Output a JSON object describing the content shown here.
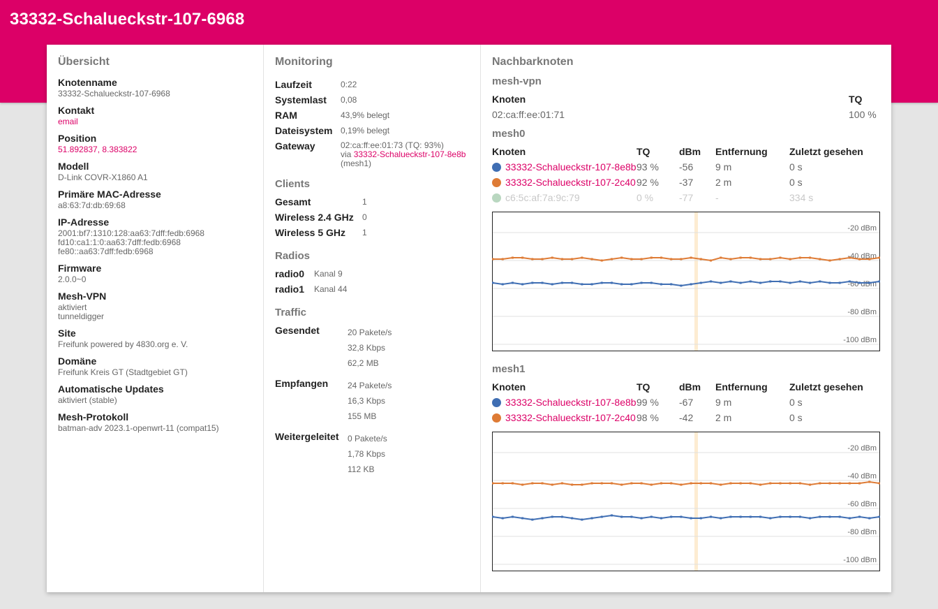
{
  "header": {
    "title": "33332-Schalueckstr-107-6968"
  },
  "overview": {
    "title": "Übersicht",
    "items": [
      {
        "label": "Knotenname",
        "lines": [
          "33332-Schalueckstr-107-6968"
        ]
      },
      {
        "label": "Kontakt",
        "lines": [
          "email"
        ],
        "link": true
      },
      {
        "label": "Position",
        "lines": [
          "51.892837, 8.383822"
        ],
        "link": true
      },
      {
        "label": "Modell",
        "lines": [
          "D-Link COVR-X1860 A1"
        ]
      },
      {
        "label": "Primäre MAC-Adresse",
        "lines": [
          "a8:63:7d:db:69:68"
        ]
      },
      {
        "label": "IP-Adresse",
        "lines": [
          "2001:bf7:1310:128:aa63:7dff:fedb:6968",
          "fd10:ca1:1:0:aa63:7dff:fedb:6968",
          "fe80::aa63:7dff:fedb:6968"
        ]
      },
      {
        "label": "Firmware",
        "lines": [
          "2.0.0~0"
        ]
      },
      {
        "label": "Mesh-VPN",
        "lines": [
          "aktiviert",
          "tunneldigger"
        ]
      },
      {
        "label": "Site",
        "lines": [
          "Freifunk powered by 4830.org e. V."
        ]
      },
      {
        "label": "Domäne",
        "lines": [
          "Freifunk Kreis GT (Stadtgebiet GT)"
        ]
      },
      {
        "label": "Automatische Updates",
        "lines": [
          "aktiviert (stable)"
        ]
      },
      {
        "label": "Mesh-Protokoll",
        "lines": [
          "batman-adv 2023.1-openwrt-11 (compat15)"
        ]
      }
    ]
  },
  "monitoring": {
    "title": "Monitoring",
    "laufzeit_label": "Laufzeit",
    "laufzeit": "0:22",
    "systemlast_label": "Systemlast",
    "systemlast": "0,08",
    "ram_label": "RAM",
    "ram": "43,9% belegt",
    "dateisystem_label": "Dateisystem",
    "dateisystem": "0,19% belegt",
    "gateway_label": "Gateway",
    "gateway_addr": "02:ca:ff:ee:01:73 (TQ: 93%)",
    "gateway_via": "via",
    "gateway_link": "33332-Schalueckstr-107-8e8b",
    "gateway_iface": "(mesh1)"
  },
  "clients": {
    "title": "Clients",
    "rows": [
      {
        "label": "Gesamt",
        "value": "1"
      },
      {
        "label": "Wireless 2.4 GHz",
        "value": "0"
      },
      {
        "label": "Wireless 5 GHz",
        "value": "1"
      }
    ]
  },
  "radios": {
    "title": "Radios",
    "rows": [
      {
        "label": "radio0",
        "value": "Kanal 9"
      },
      {
        "label": "radio1",
        "value": "Kanal 44"
      }
    ]
  },
  "traffic": {
    "title": "Traffic",
    "rows": [
      {
        "label": "Gesendet",
        "lines": [
          "20 Pakete/s",
          "32,8 Kbps",
          "62,2 MB"
        ]
      },
      {
        "label": "Empfangen",
        "lines": [
          "24 Pakete/s",
          "16,3 Kbps",
          "155 MB"
        ]
      },
      {
        "label": "Weitergeleitet",
        "lines": [
          "0 Pakete/s",
          "1,78 Kbps",
          "112 KB"
        ]
      }
    ]
  },
  "neighbours": {
    "title": "Nachbarknoten",
    "mesh_vpn": {
      "title": "mesh-vpn",
      "col_node": "Knoten",
      "col_tq": "TQ",
      "rows": [
        {
          "node": "02:ca:ff:ee:01:71",
          "tq": "100 %"
        }
      ]
    },
    "columns": {
      "node": "Knoten",
      "tq": "TQ",
      "dbm": "dBm",
      "distance": "Entfernung",
      "lastseen": "Zuletzt gesehen"
    },
    "mesh0": {
      "title": "mesh0",
      "rows": [
        {
          "node": "33332-Schalueckstr-107-8e8b",
          "tq": "93 %",
          "dbm": "-56",
          "distance": "9 m",
          "lastseen": "0 s",
          "color": "#3f6eb3",
          "stale": false
        },
        {
          "node": "33332-Schalueckstr-107-2c40",
          "tq": "92 %",
          "dbm": "-37",
          "distance": "2 m",
          "lastseen": "0 s",
          "color": "#de7b35",
          "stale": false
        },
        {
          "node": "c6:5c:af:7a:9c:79",
          "tq": "0 %",
          "dbm": "-77",
          "distance": "-",
          "lastseen": "334 s",
          "color": "#b9d7c0",
          "stale": true
        }
      ]
    },
    "mesh1": {
      "title": "mesh1",
      "rows": [
        {
          "node": "33332-Schalueckstr-107-8e8b",
          "tq": "99 %",
          "dbm": "-67",
          "distance": "9 m",
          "lastseen": "0 s",
          "color": "#3f6eb3",
          "stale": false
        },
        {
          "node": "33332-Schalueckstr-107-2c40",
          "tq": "98 %",
          "dbm": "-42",
          "distance": "2 m",
          "lastseen": "0 s",
          "color": "#de7b35",
          "stale": false
        }
      ]
    }
  },
  "chart_data": [
    {
      "type": "line",
      "title": "mesh0",
      "ylabel": "dBm",
      "ylim": [
        -105,
        -5
      ],
      "yticks": [
        "-20 dBm",
        "-40 dBm",
        "-60 dBm",
        "-80 dBm",
        "-100 dBm"
      ],
      "ytick_values": [
        -20,
        -40,
        -60,
        -80,
        -100
      ],
      "grid": true,
      "series": [
        {
          "color": "#de7b35",
          "values": [
            -39,
            -39,
            -38,
            -38,
            -39,
            -39,
            -38,
            -39,
            -39,
            -38,
            -39,
            -40,
            -39,
            -38,
            -39,
            -39,
            -38,
            -38,
            -39,
            -39,
            -38,
            -39,
            -40,
            -38,
            -39,
            -38,
            -38,
            -39,
            -39,
            -38,
            -39,
            -38,
            -38,
            -39,
            -40,
            -39,
            -38,
            -39,
            -39,
            -38
          ]
        },
        {
          "color": "#3f6eb3",
          "values": [
            -56,
            -57,
            -56,
            -57,
            -56,
            -56,
            -57,
            -56,
            -56,
            -57,
            -57,
            -56,
            -56,
            -57,
            -57,
            -56,
            -56,
            -57,
            -57,
            -58,
            -57,
            -56,
            -55,
            -56,
            -55,
            -56,
            -55,
            -56,
            -55,
            -55,
            -56,
            -55,
            -56,
            -55,
            -56,
            -56,
            -55,
            -56,
            -56,
            -55
          ]
        }
      ]
    },
    {
      "type": "line",
      "title": "mesh1",
      "ylabel": "dBm",
      "ylim": [
        -105,
        -5
      ],
      "yticks": [
        "-20 dBm",
        "-40 dBm",
        "-60 dBm",
        "-80 dBm",
        "-100 dBm"
      ],
      "ytick_values": [
        -20,
        -40,
        -60,
        -80,
        -100
      ],
      "grid": true,
      "series": [
        {
          "color": "#de7b35",
          "values": [
            -42,
            -42,
            -42,
            -43,
            -42,
            -42,
            -43,
            -42,
            -43,
            -43,
            -42,
            -42,
            -42,
            -43,
            -42,
            -42,
            -43,
            -42,
            -42,
            -43,
            -42,
            -42,
            -42,
            -43,
            -42,
            -42,
            -42,
            -43,
            -42,
            -42,
            -42,
            -42,
            -43,
            -42,
            -42,
            -42,
            -42,
            -42,
            -41,
            -42
          ]
        },
        {
          "color": "#3f6eb3",
          "values": [
            -66,
            -67,
            -66,
            -67,
            -68,
            -67,
            -66,
            -66,
            -67,
            -68,
            -67,
            -66,
            -65,
            -66,
            -66,
            -67,
            -66,
            -67,
            -66,
            -66,
            -67,
            -67,
            -66,
            -67,
            -66,
            -66,
            -66,
            -66,
            -67,
            -66,
            -66,
            -66,
            -67,
            -66,
            -66,
            -66,
            -67,
            -66,
            -67,
            -66
          ]
        }
      ]
    }
  ]
}
